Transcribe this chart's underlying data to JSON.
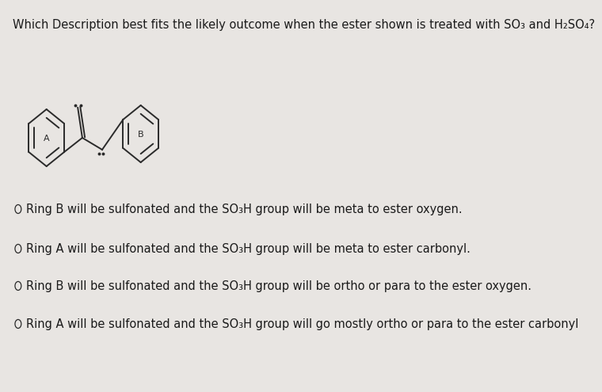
{
  "title": "Which Description best fits the likely outcome when the ester shown is treated with SO₃ and H₂SO₄?",
  "background_color": "#e8e5e2",
  "text_color": "#1a1a1a",
  "options": [
    "Ring B will be sulfonated and the SO₃H group will be meta to ester oxygen.",
    "Ring A will be sulfonated and the SO₃H group will be meta to ester carbonyl.",
    "Ring B will be sulfonated and the SO₃H group will be ortho or para to the ester oxygen.",
    "Ring A will be sulfonated and the SO₃H group will go mostly ortho or para to the ester carbonyl"
  ],
  "title_fontsize": 10.5,
  "option_fontsize": 10.5,
  "ring_color": "#2a2a2a",
  "ring_linewidth": 1.4
}
